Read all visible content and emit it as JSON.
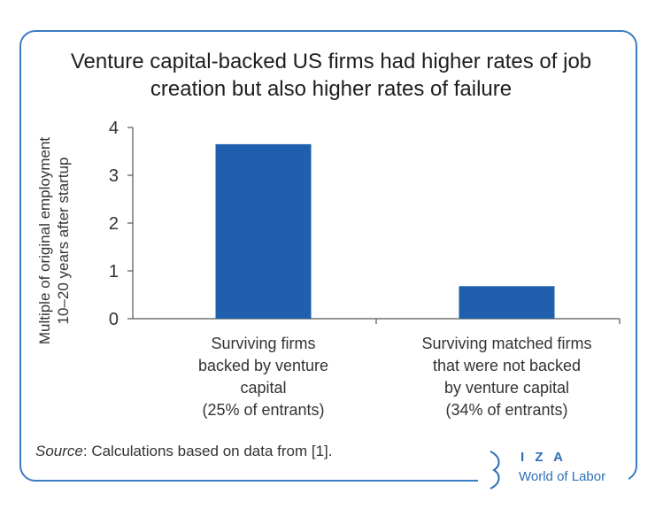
{
  "chart_data": {
    "type": "bar",
    "title_lines": [
      "Venture capital-backed US firms had higher rates of job",
      "creation but also higher rates of failure"
    ],
    "ylabel_lines": [
      "Multiple of original employment",
      "10–20 years after startup"
    ],
    "ylim": [
      0,
      4
    ],
    "yticks": [
      "0",
      "1",
      "2",
      "3",
      "4"
    ],
    "categories": [
      [
        "Surviving firms",
        "backed by venture",
        "capital",
        "(25% of entrants)"
      ],
      [
        "Surviving matched firms",
        "that were not backed",
        "by venture capital",
        "(34% of entrants)"
      ]
    ],
    "values": [
      3.65,
      0.68
    ],
    "bar_color": "#1f5fad",
    "grid": false,
    "legend": "none"
  },
  "source": {
    "label": "Source",
    "text": ": Calculations based on data from [1]."
  },
  "logo": {
    "top": "I Z A",
    "bottom": "World of Labor",
    "color": "#2e6fb6"
  }
}
